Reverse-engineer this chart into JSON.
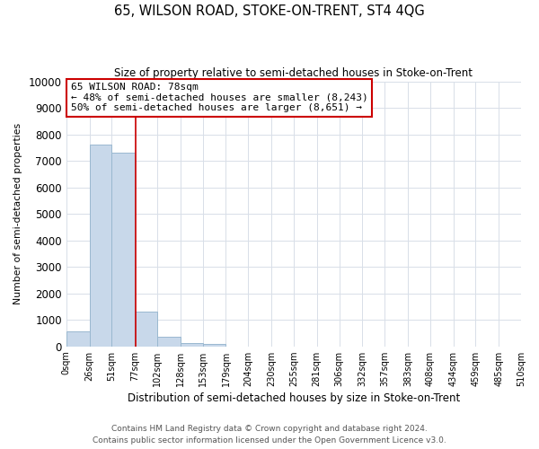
{
  "title": "65, WILSON ROAD, STOKE-ON-TRENT, ST4 4QG",
  "subtitle": "Size of property relative to semi-detached houses in Stoke-on-Trent",
  "xlabel": "Distribution of semi-detached houses by size in Stoke-on-Trent",
  "ylabel": "Number of semi-detached properties",
  "footer_line1": "Contains HM Land Registry data © Crown copyright and database right 2024.",
  "footer_line2": "Contains public sector information licensed under the Open Government Licence v3.0.",
  "bin_edges": [
    0,
    26,
    51,
    77,
    102,
    128,
    153,
    179,
    204,
    230,
    255,
    281,
    306,
    332,
    357,
    383,
    408,
    434,
    459,
    485,
    510
  ],
  "bar_values": [
    550,
    7600,
    7300,
    1320,
    350,
    130,
    100,
    0,
    0,
    0,
    0,
    0,
    0,
    0,
    0,
    0,
    0,
    0,
    0,
    0
  ],
  "bar_color": "#c8d8ea",
  "bar_edge_color": "#9ab8d0",
  "vline_x": 78,
  "vline_color": "#cc0000",
  "ylim": [
    0,
    10000
  ],
  "yticks": [
    0,
    1000,
    2000,
    3000,
    4000,
    5000,
    6000,
    7000,
    8000,
    9000,
    10000
  ],
  "xtick_labels": [
    "0sqm",
    "26sqm",
    "51sqm",
    "77sqm",
    "102sqm",
    "128sqm",
    "153sqm",
    "179sqm",
    "204sqm",
    "230sqm",
    "255sqm",
    "281sqm",
    "306sqm",
    "332sqm",
    "357sqm",
    "383sqm",
    "408sqm",
    "434sqm",
    "459sqm",
    "485sqm",
    "510sqm"
  ],
  "annotation_title": "65 WILSON ROAD: 78sqm",
  "annotation_line1": "← 48% of semi-detached houses are smaller (8,243)",
  "annotation_line2": "50% of semi-detached houses are larger (8,651) →",
  "annotation_box_color": "#ffffff",
  "annotation_box_edge": "#cc0000",
  "grid_color": "#d8dfe8",
  "background_color": "#ffffff"
}
